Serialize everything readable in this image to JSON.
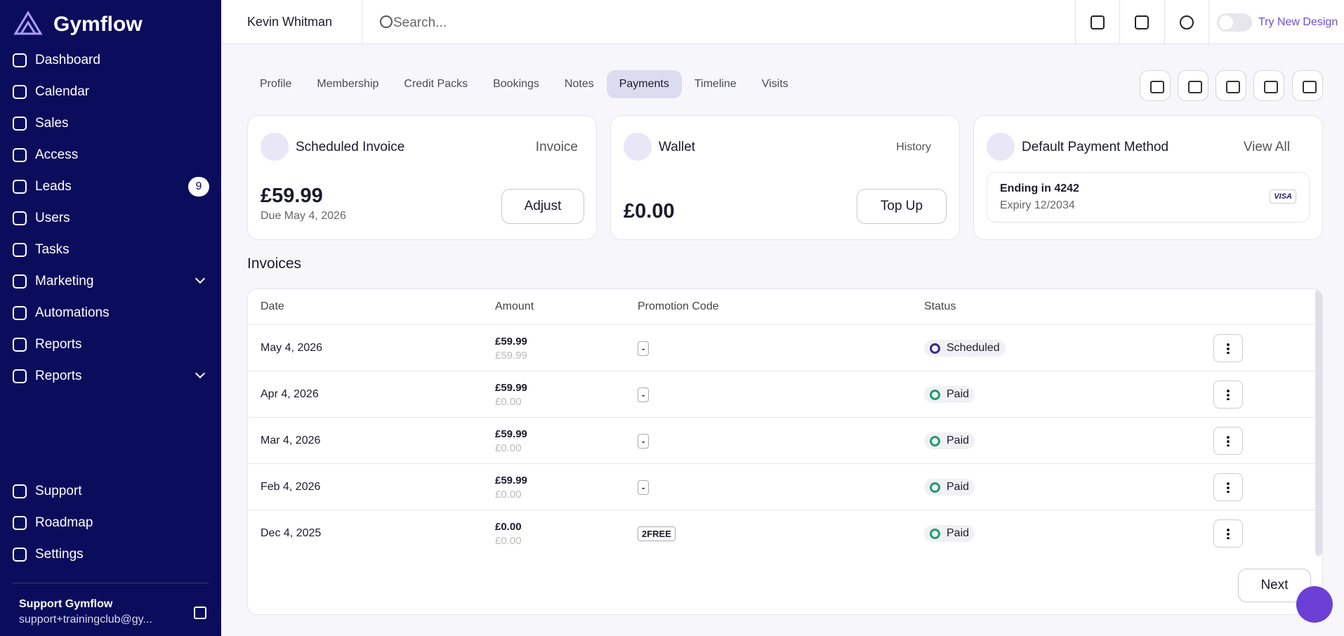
{
  "brand": "Gymflow",
  "nav": [
    {
      "label": "Dashboard"
    },
    {
      "label": "Calendar"
    },
    {
      "label": "Sales"
    },
    {
      "label": "Access"
    },
    {
      "label": "Leads",
      "badge": "9"
    },
    {
      "label": "Users"
    },
    {
      "label": "Tasks"
    },
    {
      "label": "Marketing",
      "expandable": true
    },
    {
      "label": "Automations"
    },
    {
      "label": "Reports"
    },
    {
      "label": "Reports",
      "expandable": true
    }
  ],
  "footer_nav": [
    {
      "label": "Support"
    },
    {
      "label": "Roadmap"
    },
    {
      "label": "Settings"
    }
  ],
  "account": {
    "name": "Support Gymflow",
    "email": "support+trainingclub@gy..."
  },
  "header": {
    "user": "Kevin Whitman",
    "search_placeholder": "Search...",
    "toggle_label": "Try New Design"
  },
  "tabs": [
    "Profile",
    "Membership",
    "Credit Packs",
    "Bookings",
    "Notes",
    "Payments",
    "Timeline",
    "Visits"
  ],
  "active_tab": 5,
  "cards": {
    "scheduled_invoice": {
      "title": "Scheduled Invoice",
      "action": "Invoice",
      "amount": "£59.99",
      "due": "Due May 4, 2026",
      "button": "Adjust"
    },
    "wallet": {
      "title": "Wallet",
      "action": "History",
      "amount": "£0.00",
      "button": "Top Up"
    },
    "payment_method": {
      "title": "Default Payment Method",
      "action": "View All",
      "ending": "Ending in 4242",
      "expiry": "Expiry 12/2034",
      "card_brand": "VISA"
    }
  },
  "invoices": {
    "title": "Invoices",
    "columns": [
      "Date",
      "Amount",
      "Promotion Code",
      "Status"
    ],
    "rows": [
      {
        "date": "May 4, 2026",
        "amount": "£59.99",
        "amount_secondary": "£59.99",
        "promo": "-",
        "status": "Scheduled",
        "status_color": "#3b2a8f"
      },
      {
        "date": "Apr 4, 2026",
        "amount": "£59.99",
        "amount_secondary": "£0.00",
        "promo": "-",
        "status": "Paid",
        "status_color": "#1f9d6b"
      },
      {
        "date": "Mar 4, 2026",
        "amount": "£59.99",
        "amount_secondary": "£0.00",
        "promo": "-",
        "status": "Paid",
        "status_color": "#1f9d6b"
      },
      {
        "date": "Feb 4, 2026",
        "amount": "£59.99",
        "amount_secondary": "£0.00",
        "promo": "-",
        "status": "Paid",
        "status_color": "#1f9d6b"
      },
      {
        "date": "Dec 4, 2025",
        "amount": "£0.00",
        "amount_secondary": "£0.00",
        "promo": "2FREE",
        "status": "Paid",
        "status_color": "#1f9d6b"
      }
    ],
    "next": "Next"
  }
}
